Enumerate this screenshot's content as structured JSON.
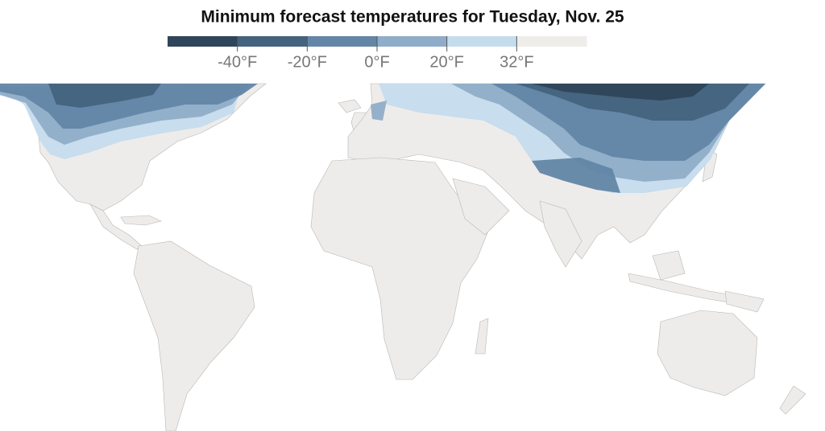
{
  "title": "Minimum forecast temperatures for Tuesday, Nov. 25",
  "legend": {
    "colors": [
      "#2f4559",
      "#45637d",
      "#6386a6",
      "#8fadc8",
      "#c5dced",
      "#efedea"
    ],
    "labels": [
      "-40°F",
      "-20°F",
      "0°F",
      "20°F",
      "32°F"
    ]
  }
}
